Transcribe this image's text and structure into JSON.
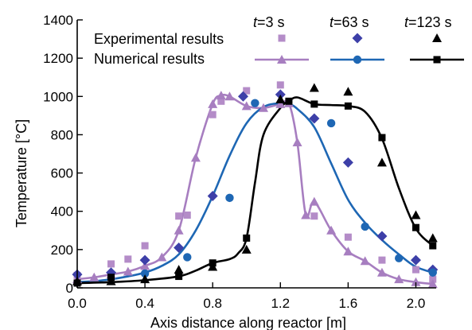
{
  "chart_data": {
    "type": "line",
    "xlabel": "Axis distance along reactor [m]",
    "ylabel": "Temperature [°C]",
    "xlim": [
      0.0,
      2.12
    ],
    "ylim": [
      0,
      1400
    ],
    "xticks": [
      "0.0",
      "0.4",
      "0.8",
      "1.2",
      "1.6",
      "2.0"
    ],
    "xtick_values": [
      0.0,
      0.4,
      0.8,
      1.2,
      1.6,
      2.0
    ],
    "yticks": [
      "0",
      "200",
      "400",
      "600",
      "800",
      "1000",
      "1200",
      "1400"
    ],
    "ytick_values": [
      0,
      200,
      400,
      600,
      800,
      1000,
      1200,
      1400
    ],
    "grid": false,
    "legend": {
      "placement": "top",
      "row_labels": [
        "Experimental results",
        "Numerical results"
      ],
      "column_headers": [
        {
          "italic": "t",
          "rest": "=3 s"
        },
        {
          "italic": "t",
          "rest": "=63 s"
        },
        {
          "italic": "t",
          "rest": "=123 s"
        }
      ]
    },
    "series": [
      {
        "kind": "experimental",
        "time": "t=3 s",
        "marker": "square",
        "color": "#b48cc8",
        "x": [
          0.0,
          0.2,
          0.3,
          0.4,
          0.6,
          0.65,
          0.8,
          0.85,
          1.0,
          1.2,
          1.4,
          1.6,
          1.8,
          2.0,
          2.1
        ],
        "y": [
          65,
          125,
          150,
          220,
          375,
          380,
          905,
          975,
          1030,
          1060,
          375,
          265,
          145,
          95,
          45
        ]
      },
      {
        "kind": "numerical",
        "time": "t=3 s",
        "marker": "triangle",
        "color": "#a77ec0",
        "x": [
          0.0,
          0.1,
          0.2,
          0.3,
          0.4,
          0.5,
          0.6,
          0.7,
          0.8,
          0.85,
          0.9,
          1.0,
          1.1,
          1.2,
          1.25,
          1.3,
          1.35,
          1.4,
          1.5,
          1.6,
          1.7,
          1.8,
          1.9,
          2.0,
          2.1
        ],
        "y": [
          45,
          55,
          70,
          85,
          115,
          160,
          300,
          680,
          960,
          1005,
          1000,
          950,
          940,
          960,
          965,
          760,
          380,
          450,
          300,
          190,
          140,
          80,
          45,
          30,
          20
        ]
      },
      {
        "kind": "experimental",
        "time": "t=63 s",
        "marker": "diamond",
        "color": "#3d3fa8",
        "x": [
          0.0,
          0.2,
          0.4,
          0.6,
          0.8,
          0.98,
          1.2,
          1.4,
          1.6,
          1.8,
          2.0,
          2.1
        ],
        "y": [
          70,
          80,
          145,
          210,
          480,
          1000,
          1010,
          885,
          655,
          270,
          145,
          95
        ]
      },
      {
        "kind": "numerical",
        "time": "t=63 s",
        "marker": "circle",
        "color": "#1e67b4",
        "x": [
          0.0,
          0.1,
          0.2,
          0.3,
          0.4,
          0.5,
          0.6,
          0.7,
          0.8,
          0.9,
          1.0,
          1.1,
          1.2,
          1.25,
          1.3,
          1.4,
          1.5,
          1.6,
          1.7,
          1.8,
          1.9,
          2.0,
          2.12
        ],
        "y": [
          30,
          35,
          45,
          60,
          80,
          115,
          175,
          300,
          480,
          690,
          860,
          945,
          965,
          960,
          935,
          840,
          650,
          460,
          340,
          250,
          175,
          110,
          75
        ],
        "marker_x": [
          0.4,
          0.65,
          0.9,
          1.05,
          1.5,
          1.7,
          1.9,
          2.1
        ],
        "marker_y": [
          75,
          160,
          470,
          965,
          860,
          320,
          155,
          80
        ]
      },
      {
        "kind": "experimental",
        "time": "t=123 s",
        "marker": "triangle",
        "color": "#000000",
        "x": [
          0.0,
          0.2,
          0.4,
          0.6,
          0.8,
          1.0,
          1.2,
          1.4,
          1.6,
          1.8,
          2.0,
          2.1
        ],
        "y": [
          35,
          35,
          45,
          95,
          110,
          200,
          985,
          1045,
          1025,
          655,
          380,
          260
        ]
      },
      {
        "kind": "numerical",
        "time": "t=123 s",
        "marker": "square",
        "color": "#000000",
        "x": [
          0.0,
          0.2,
          0.4,
          0.6,
          0.7,
          0.8,
          0.9,
          0.95,
          1.0,
          1.05,
          1.1,
          1.2,
          1.25,
          1.3,
          1.4,
          1.5,
          1.6,
          1.7,
          1.8,
          1.9,
          2.0,
          2.1
        ],
        "y": [
          25,
          30,
          40,
          60,
          90,
          130,
          150,
          180,
          260,
          550,
          800,
          940,
          975,
          995,
          960,
          955,
          950,
          920,
          780,
          520,
          310,
          220
        ],
        "marker_x": [
          0.0,
          0.2,
          0.6,
          0.8,
          1.0,
          1.25,
          1.4,
          1.6,
          1.8,
          2.0,
          2.1
        ],
        "marker_y": [
          25,
          55,
          60,
          130,
          260,
          975,
          960,
          950,
          785,
          315,
          220
        ]
      }
    ]
  }
}
